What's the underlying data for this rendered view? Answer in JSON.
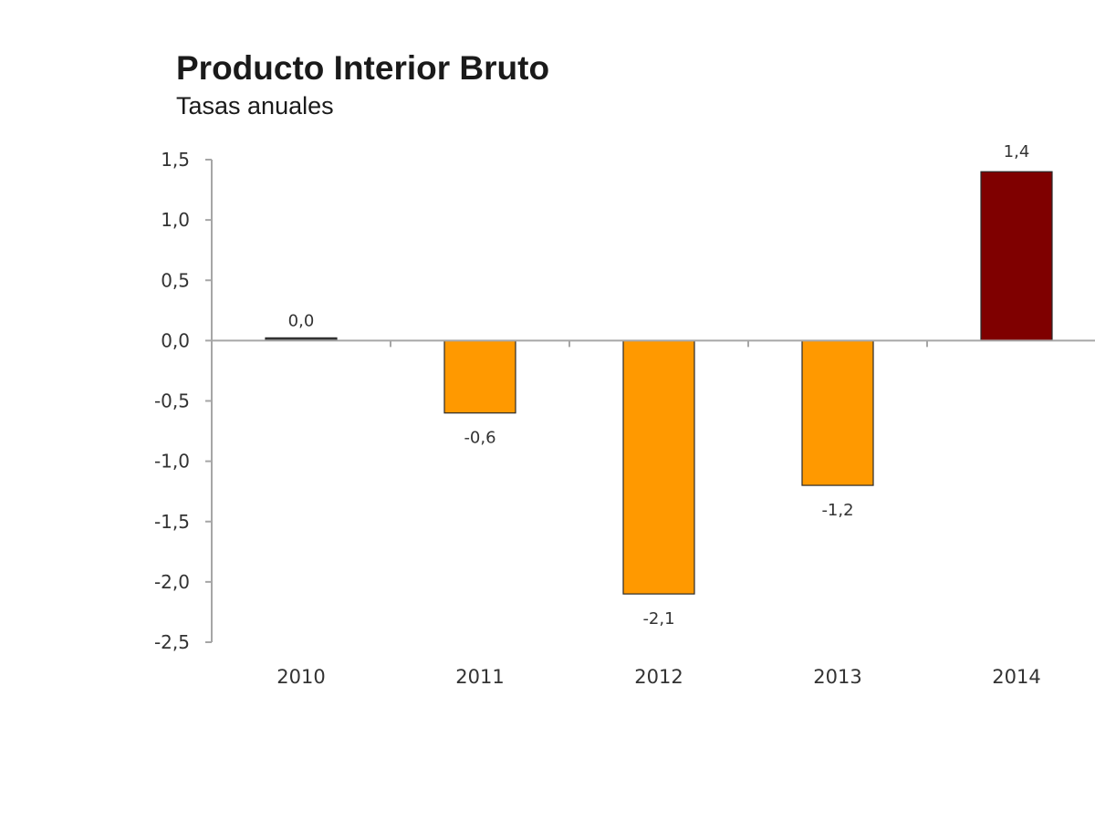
{
  "chart_data": {
    "type": "bar",
    "title": "Producto Interior Bruto",
    "subtitle": "Tasas anuales",
    "categories": [
      "2010",
      "2011",
      "2012",
      "2013",
      "2014"
    ],
    "values": [
      0.0,
      -0.6,
      -2.1,
      -1.2,
      1.4
    ],
    "data_labels": [
      "0,0",
      "-0,6",
      "-2,1",
      "-1,2",
      "1,4"
    ],
    "ylim": [
      -2.5,
      1.5
    ],
    "yticks": [
      1.5,
      1.0,
      0.5,
      0.0,
      -0.5,
      -1.0,
      -1.5,
      -2.0,
      -2.5
    ],
    "ytick_labels": [
      "1,5",
      "1,0",
      "0,5",
      "0,0",
      "-0,5",
      "-1,0",
      "-1,5",
      "-2,0",
      "-2,5"
    ],
    "xlabel": "",
    "ylabel": "",
    "grid": false,
    "legend": "none",
    "bar_colors": [
      "#3a3a3a",
      "#ff9900",
      "#ff9900",
      "#ff9900",
      "#7f0000"
    ],
    "axis_color": "#a6a6a6"
  }
}
